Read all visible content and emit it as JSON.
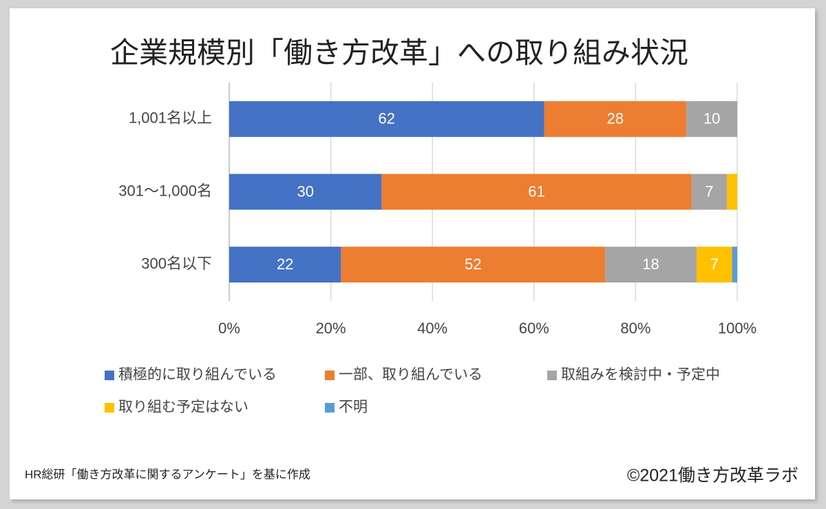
{
  "chart_data": {
    "type": "stacked-barh",
    "title": "企業規模別「働き方改革」への取り組み状況",
    "categories": [
      "1,001名以上",
      "301〜1,000名",
      "300名以下"
    ],
    "series": [
      {
        "name": "積極的に取り組んでいる",
        "color": "#4472c4",
        "values": [
          62,
          30,
          22
        ],
        "value_labels": [
          "62",
          "30",
          "22"
        ]
      },
      {
        "name": "一部、取り組んでいる",
        "color": "#ed7d31",
        "values": [
          28,
          61,
          52
        ],
        "value_labels": [
          "28",
          "61",
          "52"
        ]
      },
      {
        "name": "取組みを検討中・予定中",
        "color": "#a5a5a5",
        "values": [
          10,
          7,
          18
        ],
        "value_labels": [
          "10",
          "7",
          "18"
        ]
      },
      {
        "name": "取り組む予定はない",
        "color": "#ffc000",
        "values": [
          0,
          2,
          7
        ],
        "value_labels": [
          null,
          null,
          "7"
        ]
      },
      {
        "name": "不明",
        "color": "#5b9bd5",
        "values": [
          0,
          0,
          1
        ],
        "value_labels": [
          null,
          null,
          null
        ]
      }
    ],
    "xlim": [
      0,
      100
    ],
    "xticks": [
      {
        "value": 0,
        "label": "0%"
      },
      {
        "value": 20,
        "label": "20%"
      },
      {
        "value": 40,
        "label": "40%"
      },
      {
        "value": 60,
        "label": "60%"
      },
      {
        "value": 80,
        "label": "80%"
      },
      {
        "value": 100,
        "label": "100%"
      }
    ],
    "grid": true,
    "source": "HR総研「働き方改革に関するアンケート」を基に作成",
    "credit": "©2021働き方改革ラボ"
  }
}
